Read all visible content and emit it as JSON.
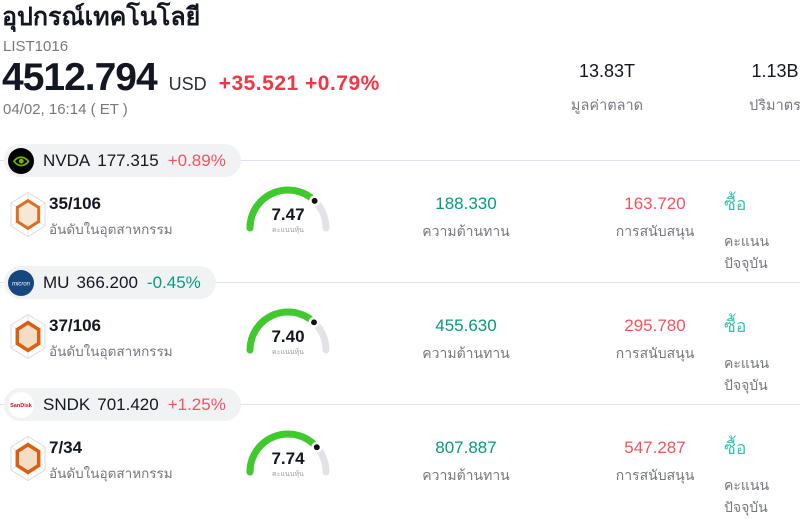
{
  "header": {
    "title": "อุปกรณ์เทคโนโลยี",
    "symbol_code": "LIST1016",
    "price": "4512.794",
    "currency": "USD",
    "change": "+35.521 +0.79%",
    "datetime": "04/02, 16:14 ( ET )",
    "stats": [
      {
        "value": "13.83T",
        "label": "มูลค่าตลาด"
      },
      {
        "value": "1.13B",
        "label": "ปริมาตร"
      }
    ]
  },
  "labels": {
    "industry_rank": "อันดับในอุตสาหกรรม",
    "stock_score": "คะแนนหุ้น",
    "resistance": "ความต้านทาน",
    "support": "การสนับสนุน",
    "current_rating": "คะแนนปัจจุบัน"
  },
  "colors": {
    "up_red": "#f7525f",
    "down_teal": "#089981",
    "header_change_red": "#f23645",
    "buy_teal": "#3ec2b4",
    "gauge_green": "#3fc92d",
    "gauge_track": "#e1e3e8",
    "label_gray": "#76787f",
    "pill_bg": "#f1f2f4"
  },
  "rows": [
    {
      "logo": "nvidia-eye-logo",
      "logo_text": "",
      "ticker": "NVDA",
      "price": "177.315",
      "change": "+0.89%",
      "direction": "up",
      "rank": "35/106",
      "score": 7.47,
      "score_display": "7.47",
      "resistance": "188.330",
      "support": "163.720",
      "signal": "ซื้อ"
    },
    {
      "logo": "micron-logo",
      "logo_text": "micron",
      "ticker": "MU",
      "price": "366.200",
      "change": "-0.45%",
      "direction": "down",
      "rank": "37/106",
      "score": 7.4,
      "score_display": "7.40",
      "resistance": "455.630",
      "support": "295.780",
      "signal": "ซื้อ"
    },
    {
      "logo": "sandisk-logo",
      "logo_text": "SanDisk",
      "ticker": "SNDK",
      "price": "701.420",
      "change": "+1.25%",
      "direction": "up",
      "rank": "7/34",
      "score": 7.74,
      "score_display": "7.74",
      "resistance": "807.887",
      "support": "547.287",
      "signal": "ซื้อ"
    }
  ]
}
